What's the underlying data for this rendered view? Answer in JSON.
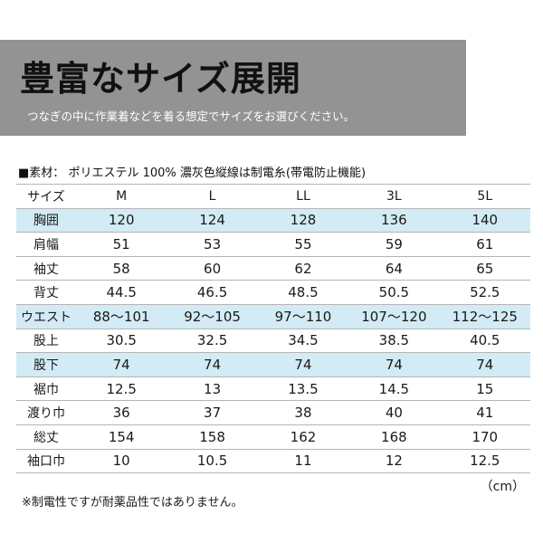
{
  "banner": {
    "title": "豊富なサイズ展開",
    "subtitle": "つなぎの中に作業着などを着る想定でサイズをお選びください。"
  },
  "material": {
    "label": "■素材：",
    "text": "ポリエステル 100% 濃灰色縦線は制電糸(帯電防止機能)"
  },
  "table": {
    "header": [
      "サイズ",
      "M",
      "L",
      "LL",
      "3L",
      "5L"
    ],
    "rows": [
      {
        "label": "胸囲",
        "values": [
          "120",
          "124",
          "128",
          "136",
          "140"
        ],
        "highlight": true
      },
      {
        "label": "肩幅",
        "values": [
          "51",
          "53",
          "55",
          "59",
          "61"
        ],
        "highlight": false
      },
      {
        "label": "袖丈",
        "values": [
          "58",
          "60",
          "62",
          "64",
          "65"
        ],
        "highlight": false
      },
      {
        "label": "背丈",
        "values": [
          "44.5",
          "46.5",
          "48.5",
          "50.5",
          "52.5"
        ],
        "highlight": false
      },
      {
        "label": "ウエスト",
        "values": [
          "88～101",
          "92～105",
          "97～110",
          "107～120",
          "112～125"
        ],
        "highlight": true
      },
      {
        "label": "股上",
        "values": [
          "30.5",
          "32.5",
          "34.5",
          "38.5",
          "40.5"
        ],
        "highlight": false
      },
      {
        "label": "股下",
        "values": [
          "74",
          "74",
          "74",
          "74",
          "74"
        ],
        "highlight": true
      },
      {
        "label": "裾巾",
        "values": [
          "12.5",
          "13",
          "13.5",
          "14.5",
          "15"
        ],
        "highlight": false
      },
      {
        "label": "渡り巾",
        "values": [
          "36",
          "37",
          "38",
          "40",
          "41"
        ],
        "highlight": false
      },
      {
        "label": "総丈",
        "values": [
          "154",
          "158",
          "162",
          "168",
          "170"
        ],
        "highlight": false
      },
      {
        "label": "袖口巾",
        "values": [
          "10",
          "10.5",
          "11",
          "12",
          "12.5"
        ],
        "highlight": false
      }
    ]
  },
  "unit": "（cm）",
  "note": "※制電性ですが耐薬品性ではありません。",
  "colors": {
    "banner_bg": "#939393",
    "highlight_row": "#d2ebf5",
    "rule": "#b5b5b5"
  }
}
